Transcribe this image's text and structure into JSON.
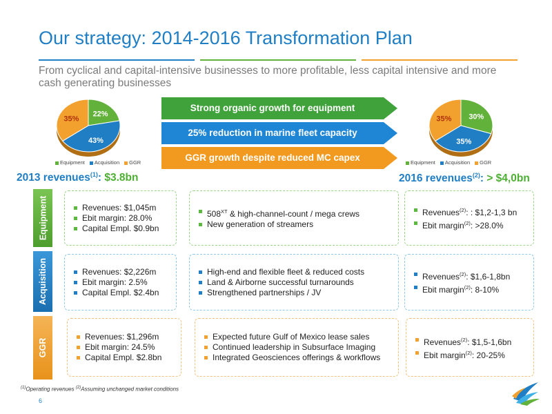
{
  "title": "Our strategy: 2014-2016 Transformation Plan",
  "subtitle": "From cyclical and capital-intensive businesses to more profitable, less capital intensive and more cash generating businesses",
  "colors": {
    "equipment": "#62b13a",
    "acquisition": "#1f7ec4",
    "ggr": "#f2a12e",
    "title": "#1f7ec4"
  },
  "pie_2013": {
    "slices": [
      {
        "name": "Equipment",
        "value": 22,
        "label": "22%"
      },
      {
        "name": "Acquisition",
        "value": 43,
        "label": "43%"
      },
      {
        "name": "GGR",
        "value": 35,
        "label": "35%"
      }
    ],
    "legend": [
      "Equipment",
      "Acquisition",
      "GGR"
    ]
  },
  "pie_2016": {
    "slices": [
      {
        "name": "Equipment",
        "value": 30,
        "label": "30%"
      },
      {
        "name": "Acquisition",
        "value": 35,
        "label": "35%"
      },
      {
        "name": "GGR",
        "value": 35,
        "label": "35%"
      }
    ],
    "legend": [
      "Equipment",
      "Acquisition",
      "GGR"
    ]
  },
  "arrows": [
    "Strong organic growth for equipment",
    "25% reduction in marine fleet capacity",
    "GGR growth despite reduced MC capex"
  ],
  "rev_2013": {
    "label": "2013 revenues",
    "sup": "(1)",
    "colon": ": ",
    "value": "$3.8bn"
  },
  "rev_2016": {
    "label": "2016 revenues",
    "sup": "(2)",
    "colon": ": ",
    "value": "> $4,0bn"
  },
  "segments": {
    "equipment": "Equipment",
    "acquisition": "Acquisition",
    "ggr": "GGR"
  },
  "equipment": {
    "left": [
      "Revenues: $1,045m",
      "Ebit margin: 28.0%",
      "Capital Empl. $0.9bn"
    ],
    "mid": {
      "a_pre": "508",
      "a_sup": "XT",
      "a_post": " & high-channel-count / mega crews",
      "b": "New generation of streamers"
    },
    "right": {
      "a_pre": "Revenues",
      "a_sup": "(2)",
      "a_post": ": : $1,2-1,3 bn",
      "b_pre": "Ebit margin",
      "b_sup": "(2)",
      "b_post": ": >28.0%"
    }
  },
  "acquisition": {
    "left": [
      "Revenues: $2,226m",
      "Ebit margin: 2.5%",
      "Capital Empl. $2.4bn"
    ],
    "mid": [
      "High-end and flexible fleet & reduced costs",
      "Land & Airborne successful turnarounds",
      "Strengthened partnerships / JV"
    ],
    "right": {
      "a_pre": "Revenues",
      "a_sup": "(2)",
      "a_post": ": $1,6-1,8bn",
      "b_pre": "Ebit margin",
      "b_sup": "(2)",
      "b_post": ": 8-10%"
    }
  },
  "ggr": {
    "left": [
      "Revenues: $1,296m",
      "Ebit margin: 24.5%",
      "Capital Empl. $2.8bn"
    ],
    "mid": [
      "Expected future Gulf of Mexico lease sales",
      "Continued leadership in Subsurface Imaging",
      "Integrated Geosciences offerings & workflows"
    ],
    "right": {
      "a_pre": "Revenues",
      "a_sup": "(2)",
      "a_post": ": $1,5-1,6bn",
      "b_pre": "Ebit margin",
      "b_sup": "(2)",
      "b_post": ": 20-25%"
    }
  },
  "footnote": {
    "s1": "(1)",
    "t1": "Operating revenues ",
    "s2": "(2)",
    "t2": "Assuming unchanged market conditions"
  },
  "page_number": "6"
}
